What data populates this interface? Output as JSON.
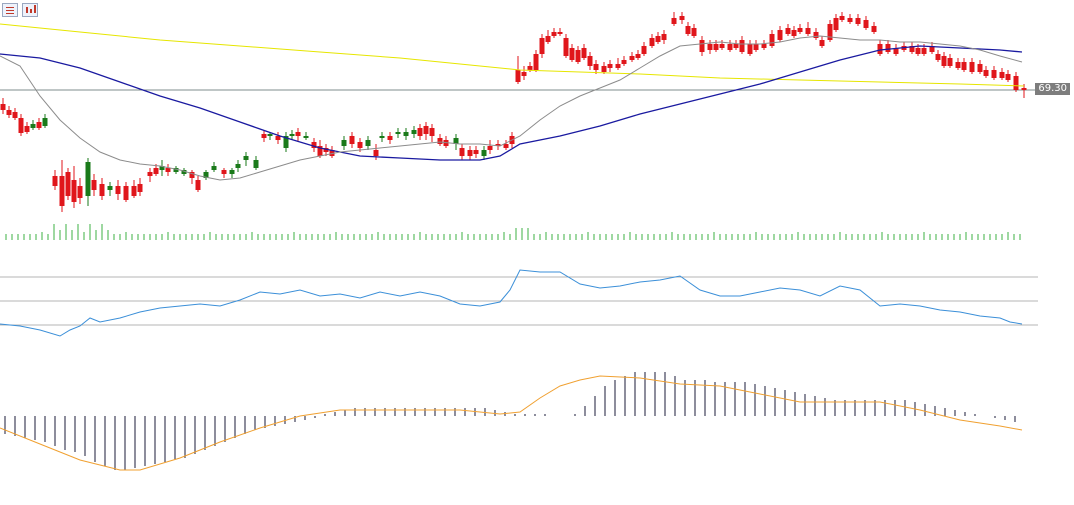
{
  "toolbar": {
    "list_icon": "list-view-icon",
    "chart_icon": "chart-view-icon"
  },
  "price_label": "69.30",
  "colors": {
    "bull": "#1a7a1a",
    "bear": "#e0161b",
    "ma_fast": "#8c8c8c",
    "ma_mid": "#1a1aa0",
    "ma_slow": "#e6e600",
    "volume": "#3cb043",
    "rsi": "#3b8fd8",
    "macd_hist": "#1b1b3a",
    "macd_signal": "#f0a030",
    "level": "#9a9a9a"
  },
  "chart_data": [
    {
      "type": "candlestick",
      "panel": "price",
      "grid": false,
      "last_price": 69.3,
      "y_scale_reference": 69.3,
      "overlays": [
        "ma_fast",
        "ma_mid",
        "ma_slow"
      ]
    },
    {
      "type": "bar",
      "panel": "volume"
    },
    {
      "type": "line",
      "panel": "rsi",
      "levels": 3
    },
    {
      "type": "bar",
      "panel": "macd",
      "overlays": [
        "signal"
      ]
    }
  ]
}
